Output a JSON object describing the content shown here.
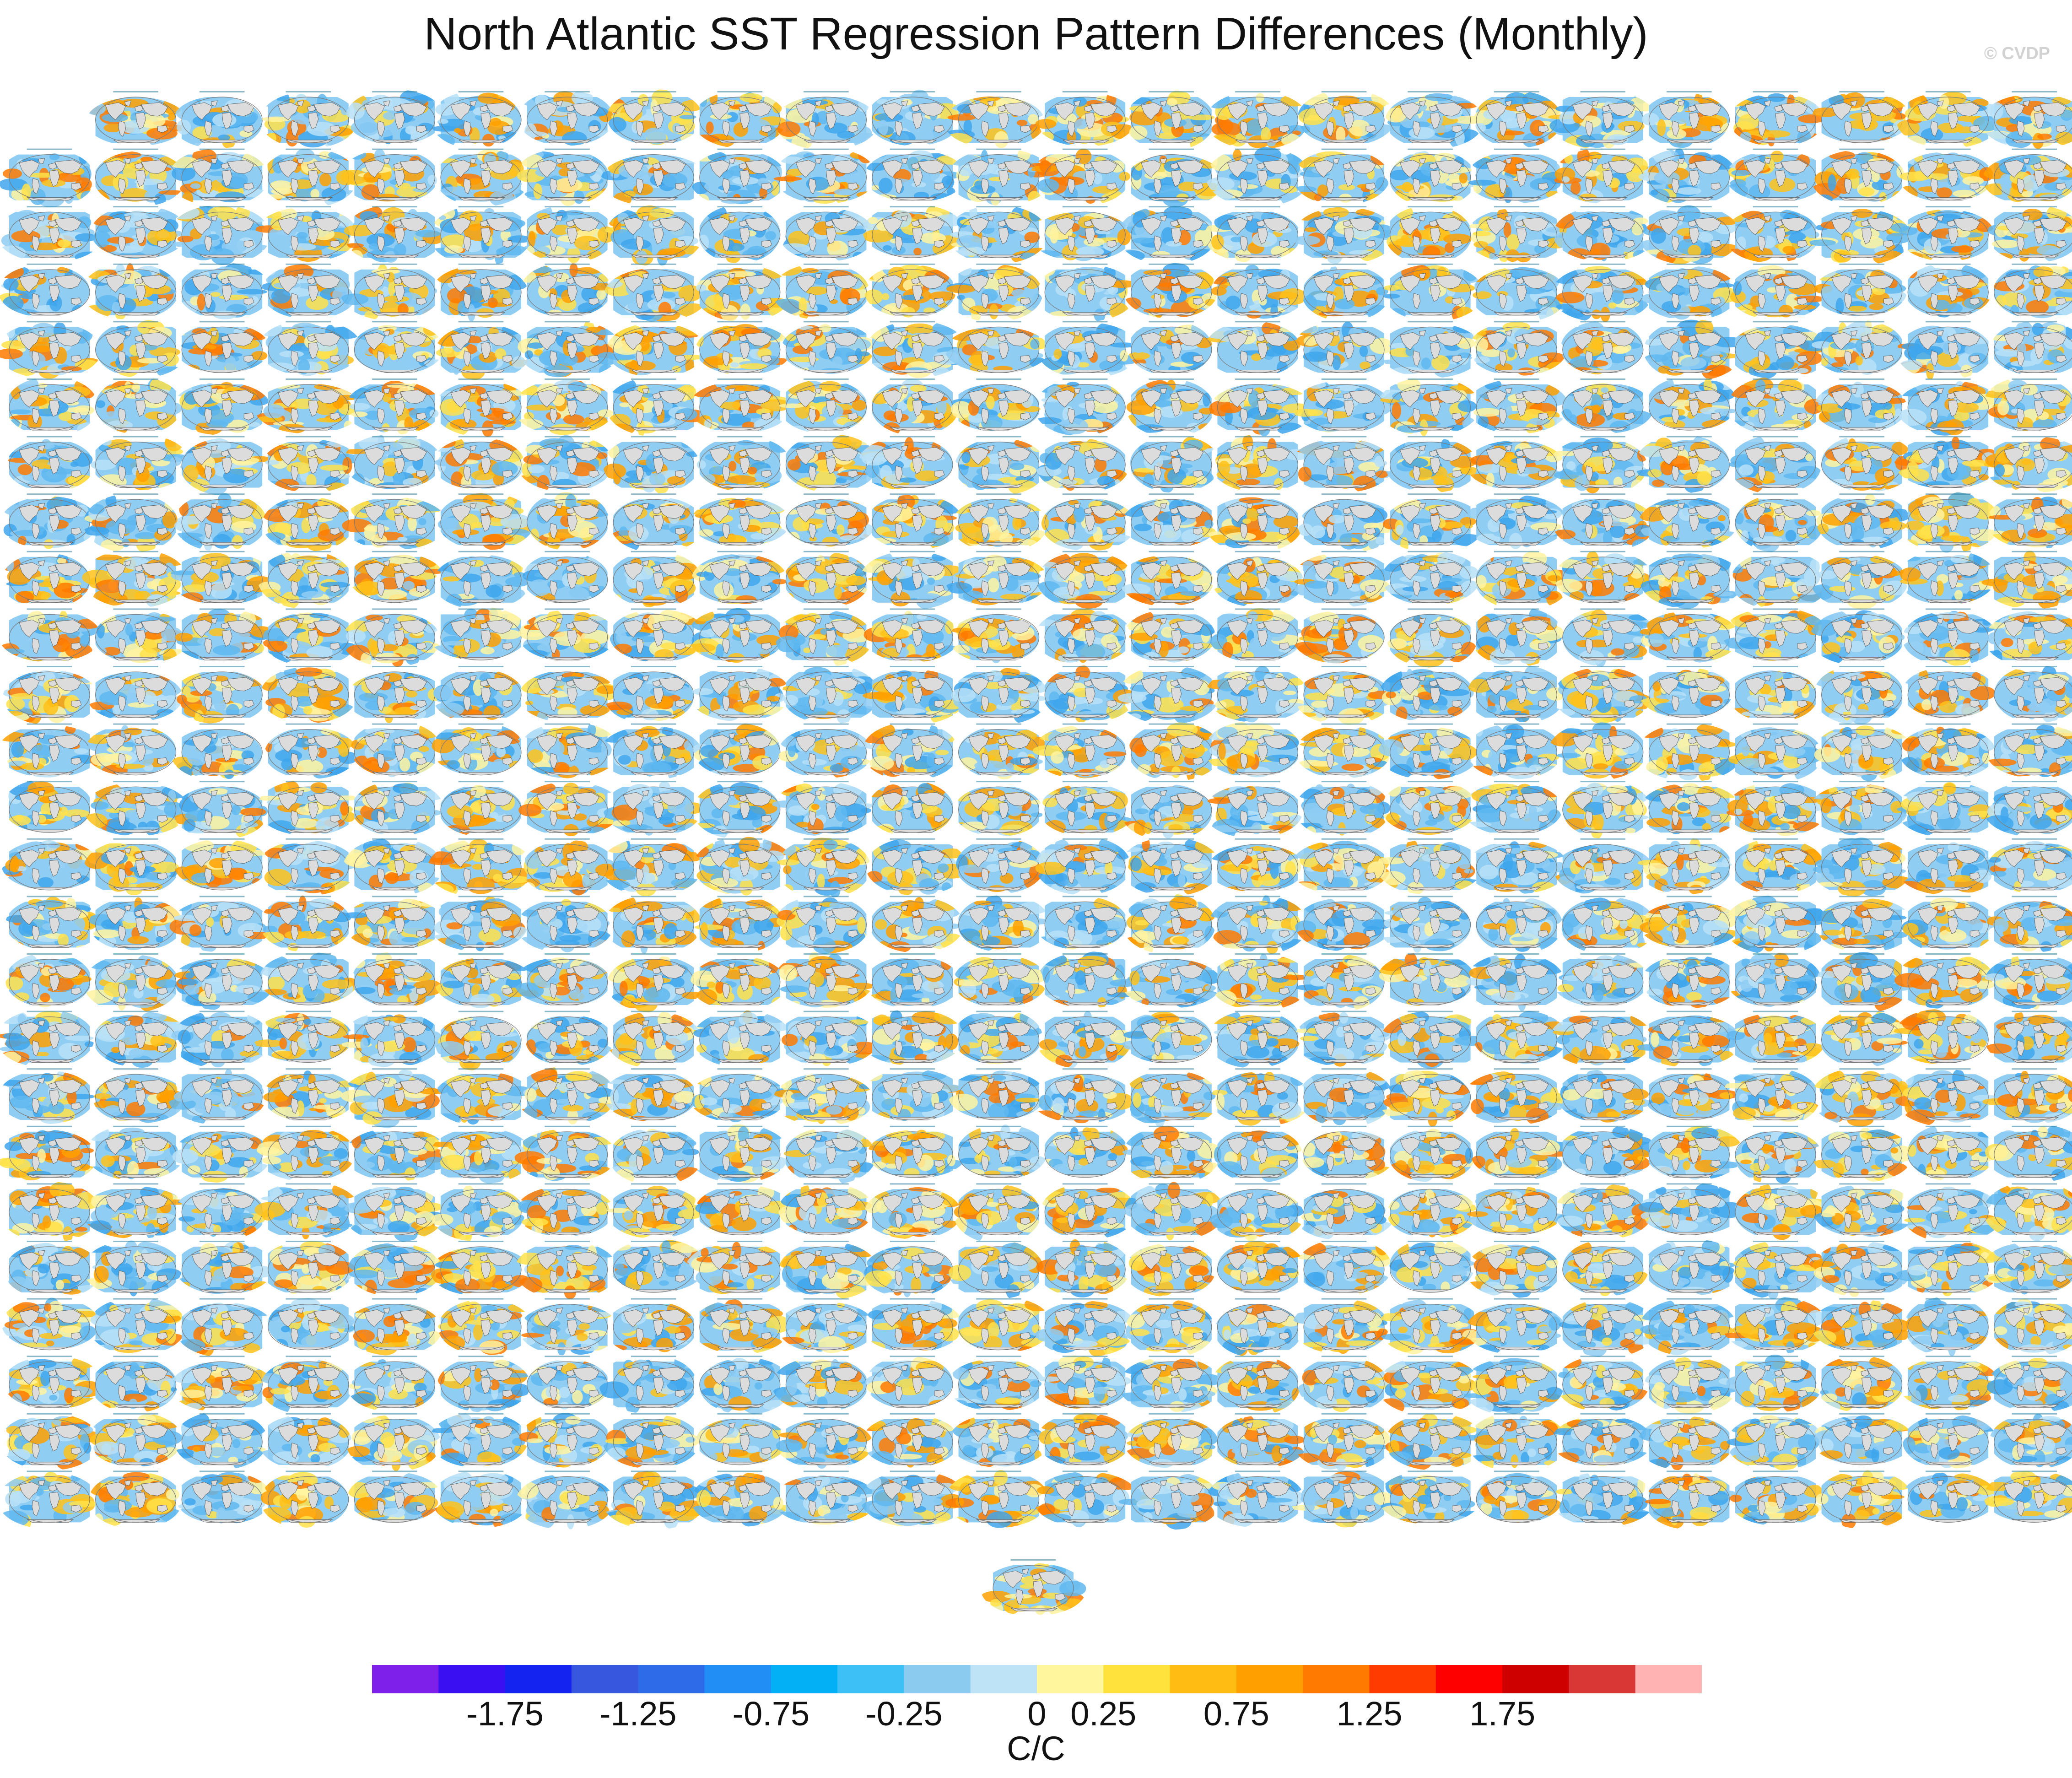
{
  "title": "North Atlantic SST Regression Pattern Differences (Monthly)",
  "credit": "© CVDP",
  "grid": {
    "columns": 24,
    "rows": 25,
    "first_row_panels": 23,
    "extra_bottom_panels": 1
  },
  "colorbar": {
    "units": "C/C",
    "colors": [
      "#7f1fea",
      "#3a10f2",
      "#1423f0",
      "#3857df",
      "#2d6be8",
      "#208ef4",
      "#04b0f5",
      "#3dc0f6",
      "#8acbef",
      "#bfe3f6",
      "#fff69e",
      "#ffe23b",
      "#ffbd13",
      "#ff9f00",
      "#ff7a00",
      "#ff3b00",
      "#ff0000",
      "#cf0000",
      "#d93636",
      "#ffb3b3"
    ],
    "tick_labels": [
      "-1.75",
      "-1.25",
      "-0.75",
      "-0.25",
      "0",
      "0.25",
      "0.75",
      "1.25",
      "1.75"
    ],
    "tick_boundary_index": [
      2,
      4,
      6,
      8,
      10,
      11,
      13,
      15,
      17
    ]
  },
  "panel_palette": {
    "ocean_cool": [
      "#5fb7ef",
      "#8fcdf3",
      "#b9e1f7",
      "#3fa6ec"
    ],
    "ocean_warm": [
      "#ffe24a",
      "#ffc21a",
      "#ffa000",
      "#ff7a00",
      "#fff3a0"
    ],
    "land": "#dcdcdc",
    "coast": "#555555",
    "frame": "#7a7a7a",
    "subtitle": "#2b7fa0"
  }
}
